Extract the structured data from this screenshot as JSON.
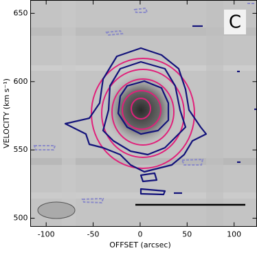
{
  "chart_data": {
    "type": "image",
    "panel_label": "C",
    "xlabel": "OFFSET (arcsec)",
    "ylabel": "VELOCITY (km s⁻¹)",
    "xlim": [
      -116.6,
      124
    ],
    "ylim": [
      494,
      659.5
    ],
    "xticks": [
      -100,
      -50,
      0,
      50,
      100
    ],
    "yticks": [
      500,
      550,
      600,
      650
    ]
  }
}
